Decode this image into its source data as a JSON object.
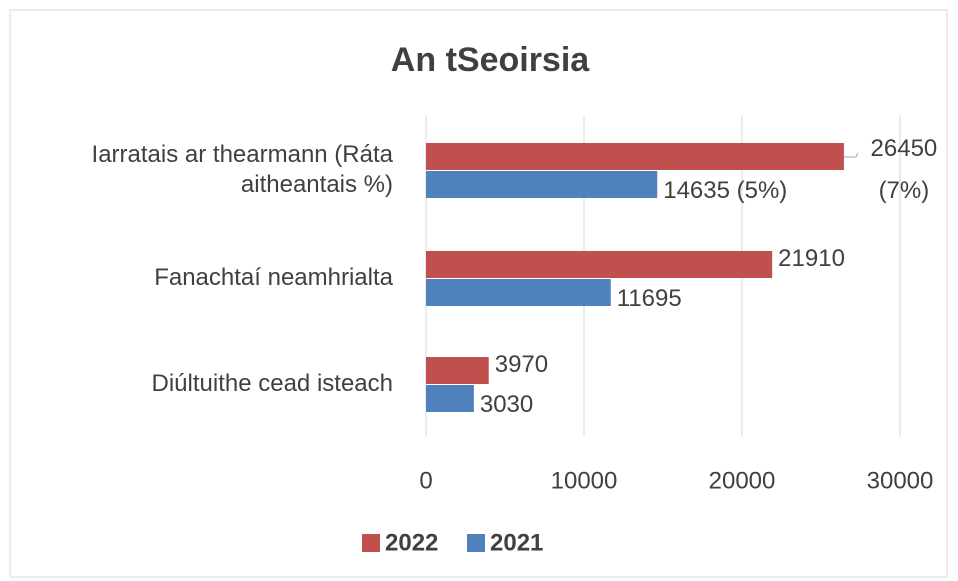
{
  "chart_data": {
    "type": "bar",
    "orientation": "horizontal",
    "title": "An tSeoirsia",
    "categories": [
      "Iarratais ar thearmann (Ráta aitheantais %)",
      "Fanachtaí neamhrialta",
      "Diúltuithe cead isteach"
    ],
    "series": [
      {
        "name": "2022",
        "color": "#c0504d",
        "values": [
          26450,
          21910,
          3970
        ],
        "value_labels": [
          "26450 (7%)",
          "21910",
          "3970"
        ]
      },
      {
        "name": "2021",
        "color": "#4f81bd",
        "values": [
          14635,
          11695,
          3030
        ],
        "value_labels": [
          "14635 (5%)",
          "11695",
          "3030"
        ]
      }
    ],
    "xlim": [
      0,
      30000
    ],
    "xticks": [
      0,
      10000,
      20000,
      30000
    ],
    "grid": true,
    "legend": "bottom"
  }
}
